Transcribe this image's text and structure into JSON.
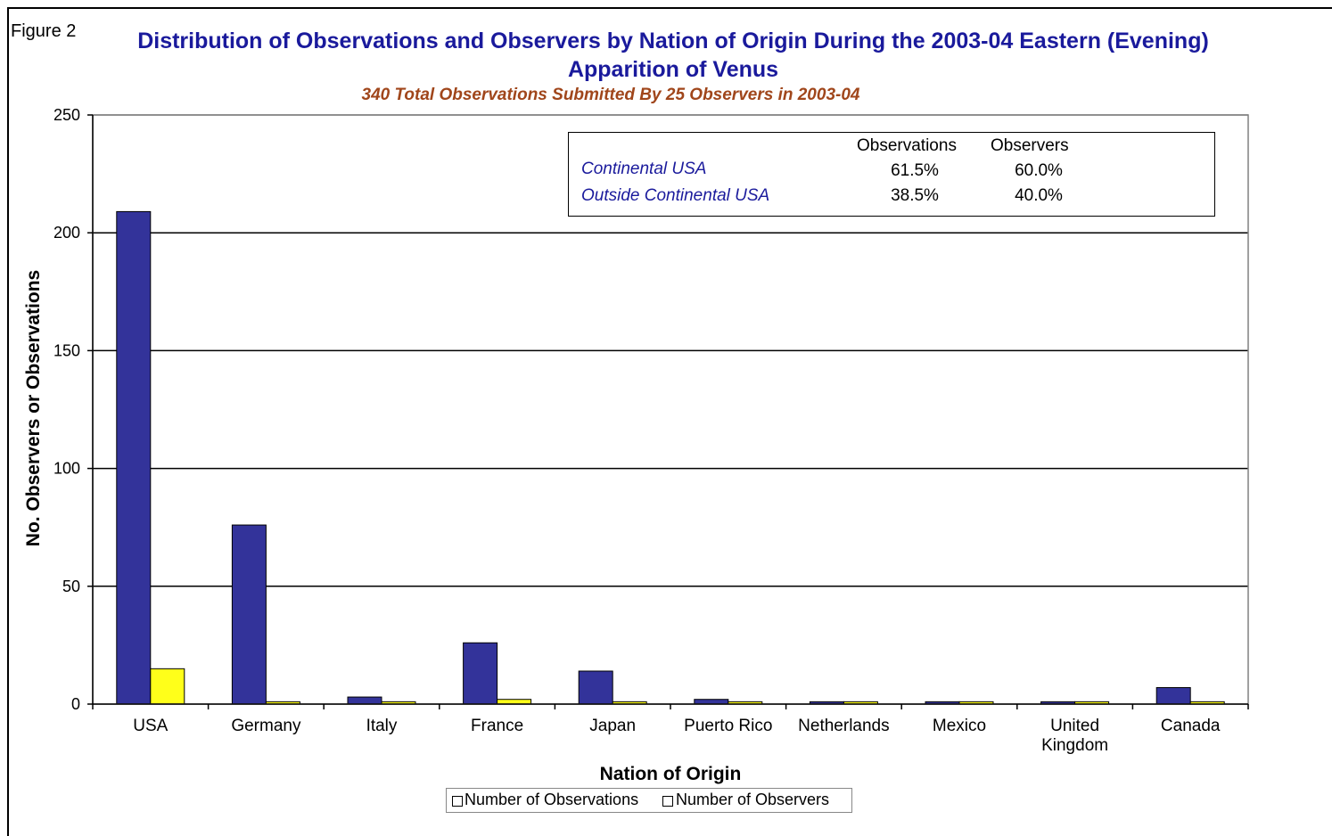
{
  "figure_label": "Figure 2",
  "colors": {
    "observations": "#33339a",
    "observers": "#ffff1a",
    "title": "#1a1a9c",
    "subtitle": "#a0461b"
  },
  "inset": {
    "col_observations": "Observations",
    "col_observers": "Observers",
    "rows": [
      {
        "label": "Continental USA",
        "observations": "61.5%",
        "observers": "60.0%"
      },
      {
        "label": "Outside Continental USA",
        "observations": "38.5%",
        "observers": "40.0%"
      }
    ]
  },
  "chart_data": {
    "type": "bar",
    "title": "Distribution of Observations and Observers by Nation of Origin During the 2003-04 Eastern (Evening) Apparition of Venus",
    "subtitle": "340 Total Observations Submitted By 25 Observers in 2003-04",
    "xlabel": "Nation of Origin",
    "ylabel": "No. Observers or Observations",
    "ylim": [
      0,
      250
    ],
    "yticks": [
      0,
      50,
      100,
      150,
      200,
      250
    ],
    "grid": true,
    "legend_position": "bottom",
    "categories": [
      "USA",
      "Germany",
      "Italy",
      "France",
      "Japan",
      "Puerto Rico",
      "Netherlands",
      "Mexico",
      "United Kingdom",
      "Canada"
    ],
    "category_lines": [
      [
        "USA"
      ],
      [
        "Germany"
      ],
      [
        "Italy"
      ],
      [
        "France"
      ],
      [
        "Japan"
      ],
      [
        "Puerto Rico"
      ],
      [
        "Netherlands"
      ],
      [
        "Mexico"
      ],
      [
        "United",
        "Kingdom"
      ],
      [
        "Canada"
      ]
    ],
    "series": [
      {
        "name": "Number of Observations",
        "values": [
          209,
          76,
          3,
          26,
          14,
          2,
          1,
          1,
          1,
          7
        ]
      },
      {
        "name": "Number of Observers",
        "values": [
          15,
          1,
          1,
          2,
          1,
          1,
          1,
          1,
          1,
          1
        ]
      }
    ]
  }
}
